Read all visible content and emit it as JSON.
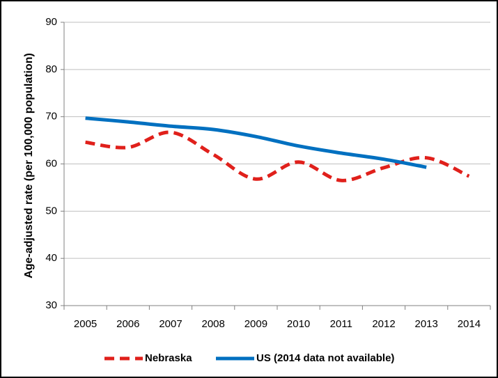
{
  "chart_data": {
    "type": "line",
    "y_label": "Age-adjusted rate (per 100,000 population)",
    "categories": [
      "2005",
      "2006",
      "2007",
      "2008",
      "2009",
      "2010",
      "2011",
      "2012",
      "2013",
      "2014"
    ],
    "series": [
      {
        "name": "Nebraska",
        "color": "#e0201b",
        "dashed": true,
        "values": [
          64.6,
          63.5,
          66.7,
          62,
          56.8,
          60.4,
          56.5,
          59.2,
          61.3,
          57.4
        ]
      },
      {
        "name": "US (2014 data not available)",
        "color": "#0070c0",
        "dashed": false,
        "values": [
          69.7,
          68.9,
          68,
          67.3,
          65.8,
          63.8,
          62.3,
          61,
          59.3,
          null
        ]
      }
    ],
    "ylim": [
      30,
      90
    ],
    "yticks": [
      30,
      40,
      50,
      60,
      70,
      80,
      90
    ],
    "grid": true,
    "smooth": true,
    "legend": "bottom"
  }
}
